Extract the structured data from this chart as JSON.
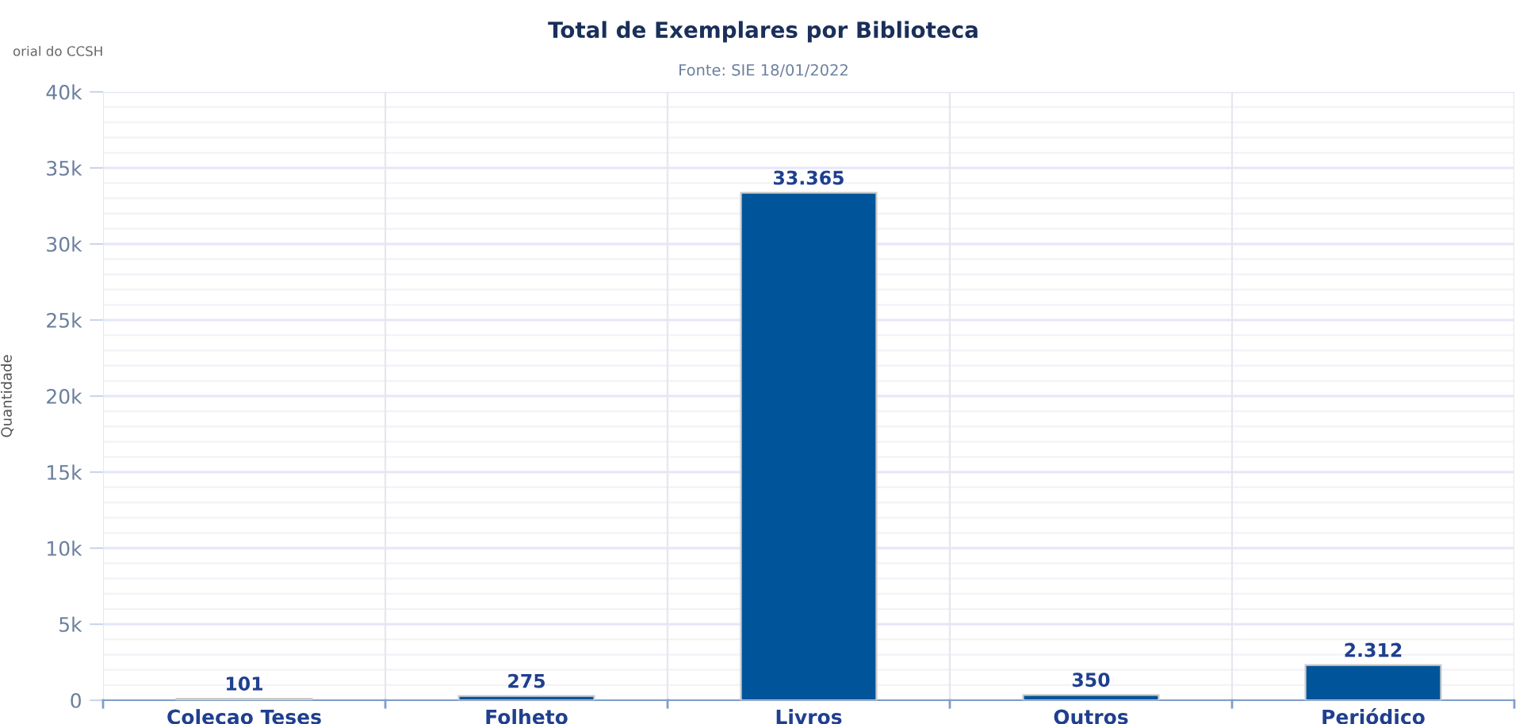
{
  "chart_data": {
    "type": "bar",
    "title": "Total de Exemplares por Biblioteca",
    "subtitle": "Fonte: SIE 18/01/2022",
    "ylabel": "Quantidade",
    "annotations": [
      "orial do CCSH"
    ],
    "categories": [
      "Colecao Teses",
      "Folheto",
      "Livros",
      "Outros",
      "Periódico"
    ],
    "values": [
      101,
      275,
      33365,
      350,
      2312
    ],
    "value_labels": [
      "101",
      "275",
      "33.365",
      "350",
      "2.312"
    ],
    "color": "#00549a",
    "ylim": [
      0,
      40000
    ],
    "yticks": [
      {
        "value": 0,
        "label": "0"
      },
      {
        "value": 5000,
        "label": "5k"
      },
      {
        "value": 10000,
        "label": "10k"
      },
      {
        "value": 15000,
        "label": "15k"
      },
      {
        "value": 20000,
        "label": "20k"
      },
      {
        "value": 25000,
        "label": "25k"
      },
      {
        "value": 30000,
        "label": "30k"
      },
      {
        "value": 35000,
        "label": "35k"
      },
      {
        "value": 40000,
        "label": "40k"
      }
    ],
    "grid": true
  }
}
